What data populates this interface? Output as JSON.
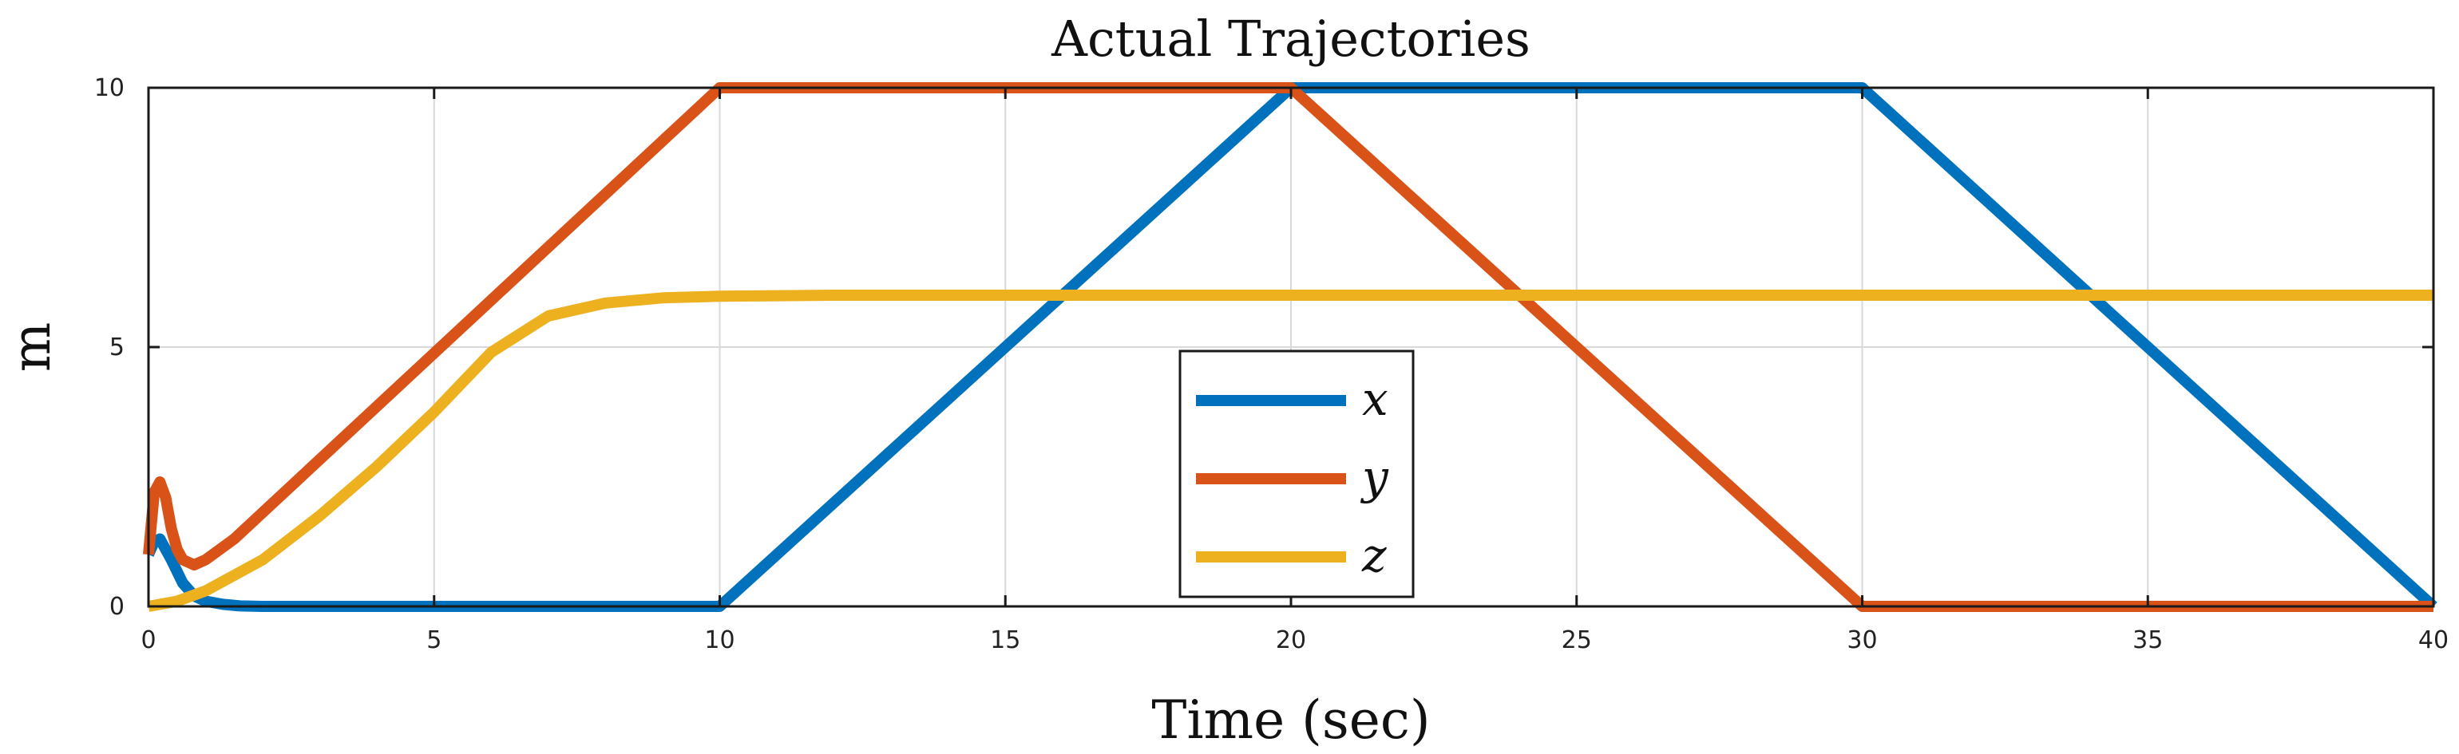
{
  "chart_data": {
    "type": "line",
    "title": "Actual Trajectories",
    "xlabel": "Time (sec)",
    "ylabel": "m",
    "xlim": [
      0,
      40
    ],
    "ylim": [
      0,
      10
    ],
    "xticks": [
      0,
      5,
      10,
      15,
      20,
      25,
      30,
      35,
      40
    ],
    "yticks": [
      0,
      5,
      10
    ],
    "grid": true,
    "legend_position": "center-bottom",
    "series": [
      {
        "name": "x",
        "color": "#0072BD",
        "x": [
          0,
          0.1,
          0.2,
          0.4,
          0.6,
          0.8,
          1.0,
          1.3,
          1.6,
          2.0,
          10,
          20,
          30,
          40
        ],
        "y": [
          1.0,
          1.25,
          1.3,
          0.9,
          0.45,
          0.2,
          0.1,
          0.04,
          0.01,
          0,
          0,
          10,
          10,
          0
        ]
      },
      {
        "name": "y",
        "color": "#D95319",
        "x": [
          0,
          0.1,
          0.2,
          0.3,
          0.4,
          0.5,
          0.6,
          0.8,
          1.0,
          1.5,
          10,
          20,
          30,
          40
        ],
        "y": [
          1.0,
          2.2,
          2.4,
          2.1,
          1.5,
          1.1,
          0.9,
          0.8,
          0.9,
          1.3,
          10,
          10,
          0,
          0
        ]
      },
      {
        "name": "z",
        "color": "#EDB120",
        "x": [
          0,
          0.5,
          1,
          2,
          3,
          4,
          5,
          6,
          7,
          8,
          9,
          10,
          12,
          15,
          20,
          25,
          30,
          35,
          40
        ],
        "y": [
          0,
          0.1,
          0.3,
          0.9,
          1.75,
          2.7,
          3.75,
          4.9,
          5.6,
          5.85,
          5.95,
          5.98,
          6,
          6,
          6,
          6,
          6,
          6,
          6
        ]
      }
    ]
  }
}
